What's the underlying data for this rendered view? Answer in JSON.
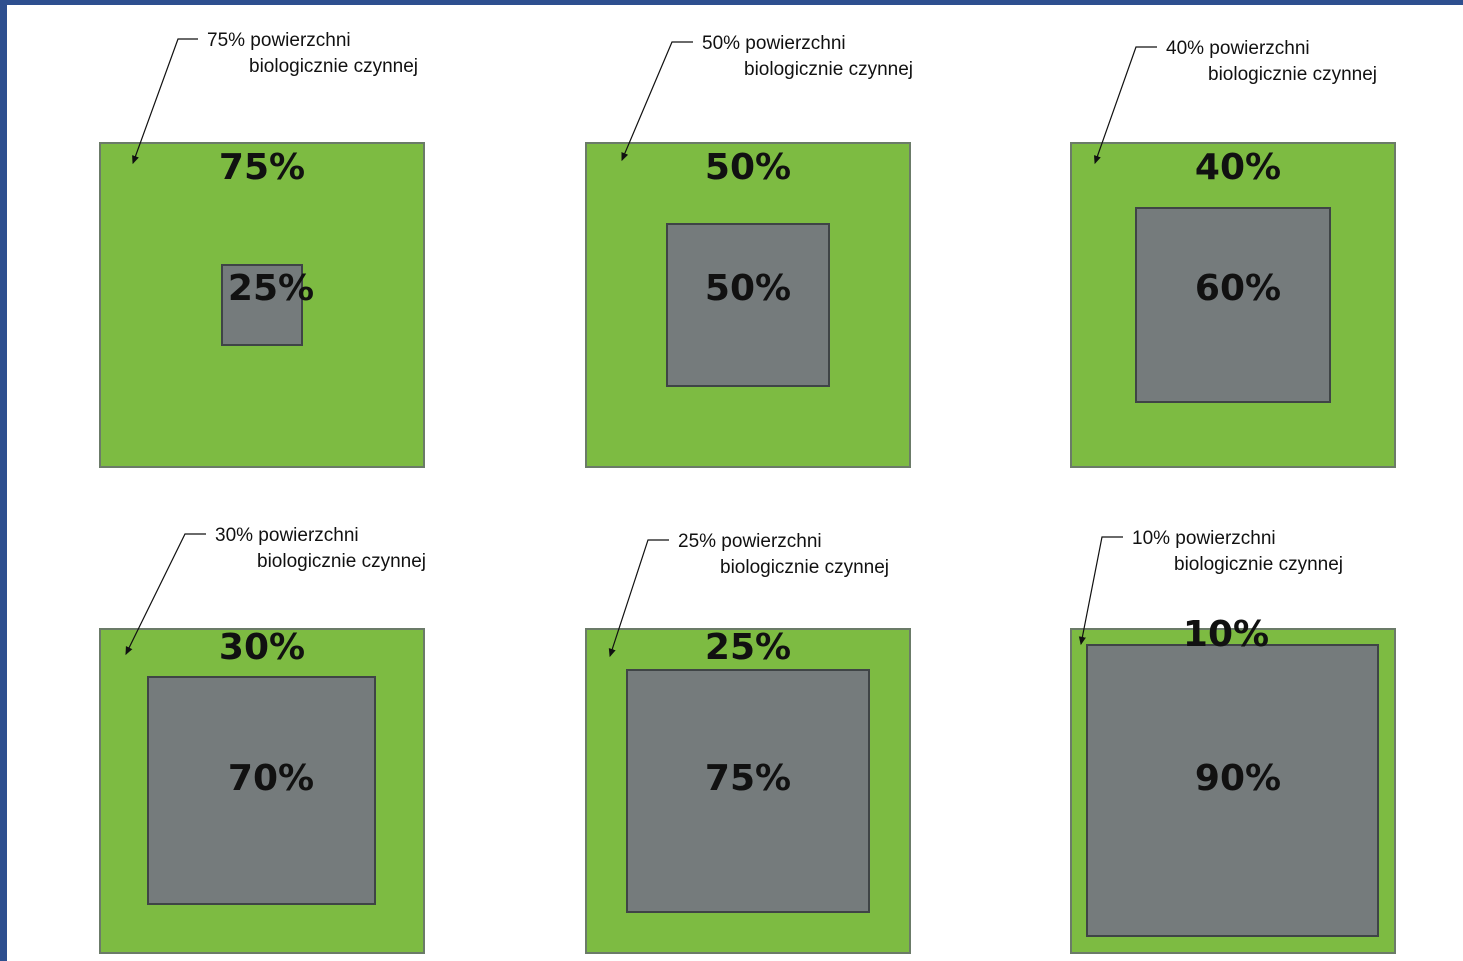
{
  "colors": {
    "frame": "#2e4f8f",
    "green_area": "#7dbb42",
    "sealed_area": "#757b7c",
    "text": "#111111"
  },
  "panels": [
    {
      "callout_line1": "75% powierzchni",
      "callout_line2": "biologicznie czynnej",
      "green_pct": "75%",
      "grey_pct": "25%",
      "green_fraction": 0.75,
      "grey_fraction": 0.25
    },
    {
      "callout_line1": "50% powierzchni",
      "callout_line2": "biologicznie czynnej",
      "green_pct": "50%",
      "grey_pct": "50%",
      "green_fraction": 0.5,
      "grey_fraction": 0.5
    },
    {
      "callout_line1": "40% powierzchni",
      "callout_line2": "biologicznie czynnej",
      "green_pct": "40%",
      "grey_pct": "60%",
      "green_fraction": 0.4,
      "grey_fraction": 0.6
    },
    {
      "callout_line1": "30% powierzchni",
      "callout_line2": "biologicznie czynnej",
      "green_pct": "30%",
      "grey_pct": "70%",
      "green_fraction": 0.3,
      "grey_fraction": 0.7
    },
    {
      "callout_line1": "25% powierzchni",
      "callout_line2": "biologicznie czynnej",
      "green_pct": "25%",
      "grey_pct": "75%",
      "green_fraction": 0.25,
      "grey_fraction": 0.75
    },
    {
      "callout_line1": "10% powierzchni",
      "callout_line2": "biologicznie czynnej",
      "green_pct": "10%",
      "grey_pct": "90%",
      "green_fraction": 0.1,
      "grey_fraction": 0.9
    }
  ]
}
